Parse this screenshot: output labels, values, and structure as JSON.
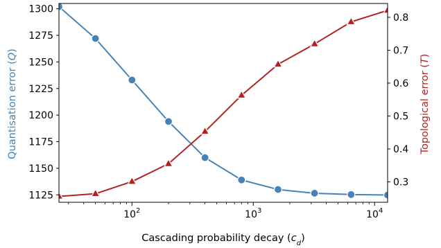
{
  "chart_data": {
    "type": "line",
    "xlabel": "Cascading probability decay (",
    "xlabel_symbol": "c",
    "xlabel_subscript": "d",
    "xlabel_close": ")",
    "ylabel_left": "Quantisation error (",
    "ylabel_left_symbol": "Q",
    "ylabel_left_close": ")",
    "ylabel_right": "Topological error (",
    "ylabel_right_symbol": "T",
    "ylabel_right_close": ")",
    "x_scale": "log",
    "xlim": [
      25,
      12800
    ],
    "x_ticks": [
      {
        "base": "10",
        "exp": "2",
        "value": 100
      },
      {
        "base": "10",
        "exp": "3",
        "value": 1000
      },
      {
        "base": "10",
        "exp": "4",
        "value": 10000
      }
    ],
    "ylim_left": [
      1118,
      1305
    ],
    "ylim_right": [
      0.238,
      0.842
    ],
    "yticks_left": [
      "1125",
      "1150",
      "1175",
      "1200",
      "1225",
      "1250",
      "1275",
      "1300"
    ],
    "yticks_right": [
      "0.3",
      "0.4",
      "0.5",
      "0.6",
      "0.7",
      "0.8"
    ],
    "x": [
      25,
      50,
      100,
      200,
      400,
      800,
      1600,
      3200,
      6400,
      12800
    ],
    "series": [
      {
        "axis": "left",
        "marker": "circle",
        "color": "#4682b4",
        "values": [
          1302,
          1272,
          1233,
          1194,
          1160,
          1139,
          1130,
          1126.5,
          1125.3,
          1124.8
        ]
      },
      {
        "axis": "right",
        "marker": "triangle",
        "color": "#b22222",
        "values": [
          0.256,
          0.264,
          0.301,
          0.355,
          0.453,
          0.563,
          0.657,
          0.719,
          0.786,
          0.821
        ]
      }
    ],
    "grid": false
  }
}
